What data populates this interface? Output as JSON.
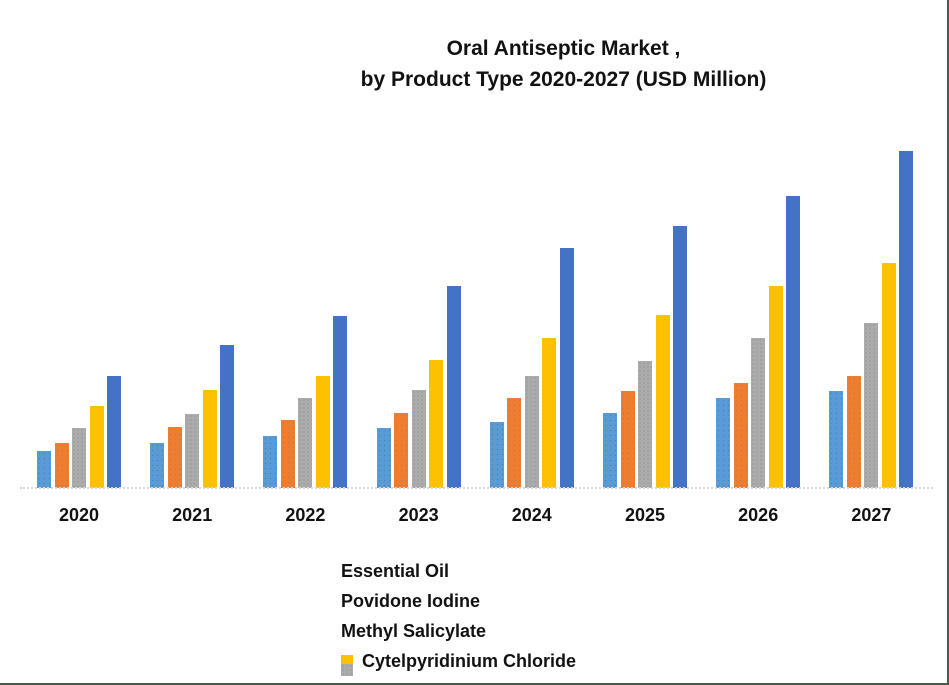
{
  "frame": {
    "border_color": "#4a5a48"
  },
  "title": {
    "line1": "Oral Antiseptic Market ,",
    "line2": "by Product Type 2020-2027 (USD Million)"
  },
  "chart_data": {
    "type": "bar",
    "title": "Oral Antiseptic Market , by Product Type 2020-2027 (USD Million)",
    "categories": [
      "2020",
      "2021",
      "2022",
      "2023",
      "2024",
      "2025",
      "2026",
      "2027"
    ],
    "series": [
      {
        "name": "Essential Oil",
        "color": "#5B9BD5",
        "pattern": "dots-blue",
        "in_legend": true,
        "values": [
          37,
          45,
          52,
          60,
          66,
          75,
          90,
          97
        ]
      },
      {
        "name": "Povidone Iodine",
        "color": "#ED7D31",
        "pattern": "dots-orange",
        "in_legend": true,
        "values": [
          45,
          61,
          68,
          75,
          90,
          97,
          105,
          112
        ]
      },
      {
        "name": "Methyl Salicylate",
        "color": "#ABABAB",
        "pattern": "dots-gray",
        "in_legend": true,
        "values": [
          60,
          74,
          90,
          98,
          112,
          127,
          150,
          165
        ]
      },
      {
        "name": "Cytelpyridinium Chloride",
        "color": "#FFC000",
        "pattern": "none",
        "in_legend": true,
        "values": [
          82,
          98,
          112,
          128,
          150,
          173,
          202,
          225
        ]
      },
      {
        "name": "",
        "color": "#4472C4",
        "pattern": "none",
        "in_legend": false,
        "values": [
          112,
          143,
          172,
          202,
          240,
          262,
          292,
          337
        ]
      }
    ],
    "xlabel": "",
    "ylabel": "",
    "ylim": [
      0,
      350
    ],
    "grid": false,
    "y_axis_labels_visible": false,
    "value_note": "No y-axis scale shown in chart; values are relative bar heights (pixels at 949x685).",
    "legend_position": "bottom-center, stacked vertically, left-aligned"
  }
}
